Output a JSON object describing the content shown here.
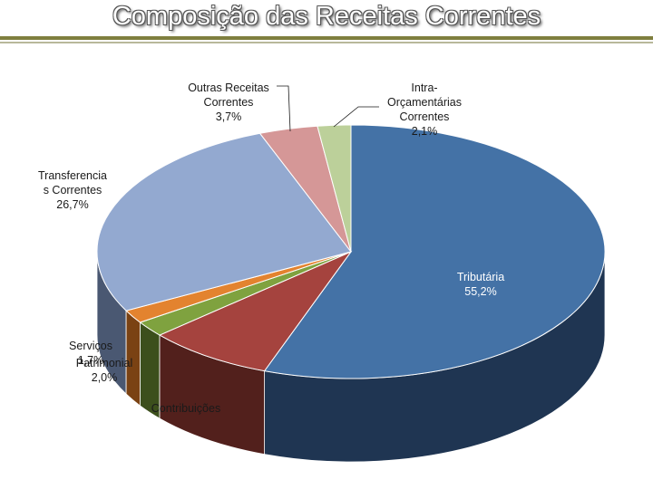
{
  "header": {
    "title": "Composição das Receitas Correntes"
  },
  "chart_data": {
    "type": "pie",
    "title": "Composição das Receitas Correntes",
    "slices": [
      {
        "label": [
          "Tributária"
        ],
        "value_label": "55,2%",
        "value": 55.2,
        "color": "#4472a6",
        "side": "#1f3552"
      },
      {
        "label": [
          "Contribuições"
        ],
        "value_label": "",
        "value": 8.0,
        "color": "#a5433e",
        "side": "#52201c"
      },
      {
        "label": [
          "Patrimonial"
        ],
        "value_label": "2,0%",
        "value": 2.0,
        "color": "#7fa23f",
        "side": "#3c4f1c"
      },
      {
        "label": [
          "Serviços"
        ],
        "value_label": "1,7%",
        "value": 1.7,
        "color": "#e3832f",
        "side": "#7a4213"
      },
      {
        "label": [
          "Transferencia",
          "s Correntes"
        ],
        "value_label": "26,7%",
        "value": 26.7,
        "color": "#93a9d0",
        "side": "#4a5872"
      },
      {
        "label": [
          "Outras Receitas",
          "Correntes"
        ],
        "value_label": "3,7%",
        "value": 3.7,
        "color": "#d59797",
        "side": "#6e4040"
      },
      {
        "label": [
          "Intra-",
          "Orçamentárias",
          "Correntes"
        ],
        "value_label": "2,1%",
        "value": 2.1,
        "color": "#bcd09a",
        "side": "#5f6b48"
      }
    ],
    "legend": "none"
  }
}
